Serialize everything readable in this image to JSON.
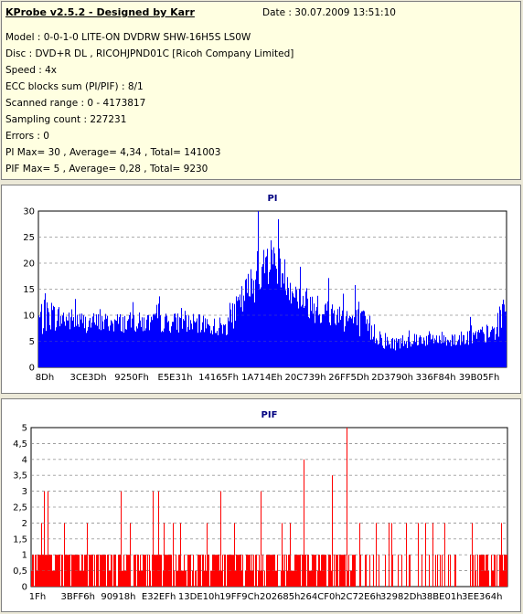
{
  "header": {
    "title": "KProbe v2.5.2 - Designed by Karr",
    "date": "Date : 30.07.2009 13:51:10"
  },
  "info_lines": [
    "Model : 0-0-1-0 LITE-ON DVDRW SHW-16H5S  LS0W",
    "Disc : DVD+R DL , RICOHJPND01C [Ricoh Company Limited]",
    "Speed : 4x",
    "ECC blocks sum (PI/PIF) : 8/1",
    "Scanned range : 0 - 4173817",
    "Sampling count : 227231",
    "Errors : 0",
    "PI Max= 30 , Average= 4,34 , Total= 141003",
    "PIF Max= 5 , Average= 0,28 , Total= 9230"
  ],
  "colors": {
    "pi": "#0000ff",
    "pif": "#ff0000",
    "title": "#000080"
  },
  "chart_data": [
    {
      "type": "bar",
      "title": "PI",
      "ylim": [
        0,
        30
      ],
      "yticks": [
        0,
        5,
        10,
        15,
        20,
        25,
        30
      ],
      "xticklabels": [
        "8Dh",
        "3CE3Dh",
        "9250Fh",
        "E5E31h",
        "14165Fh",
        "1A714Eh",
        "20C739h",
        "26FF5Dh",
        "2D3790h",
        "336F84h",
        "39B05Fh"
      ],
      "grid": true,
      "profile": {
        "x": [
          0,
          0.02,
          0.1,
          0.2,
          0.3,
          0.4,
          0.45,
          0.5,
          0.55,
          0.6,
          0.65,
          0.7,
          0.75,
          0.8,
          0.9,
          0.97,
          1.0
        ],
        "base": [
          8,
          9,
          8,
          8,
          8,
          7,
          14,
          20,
          13,
          10,
          9,
          7,
          4,
          5,
          5,
          6,
          10
        ],
        "amp": [
          8,
          6,
          4,
          4,
          4,
          4,
          8,
          9,
          6,
          6,
          6,
          6,
          3,
          3,
          3,
          4,
          8
        ]
      }
    },
    {
      "type": "bar",
      "title": "PIF",
      "ylim": [
        0,
        5
      ],
      "yticks": [
        0,
        0.5,
        1,
        1.5,
        2,
        2.5,
        3,
        3.5,
        4,
        4.5,
        5
      ],
      "yticklabels": [
        "0",
        "0,5",
        "1",
        "1,5",
        "2",
        "2,5",
        "3",
        "3,5",
        "4",
        "4,5",
        "5"
      ],
      "xticklabels": [
        "1Fh",
        "3BFF6h",
        "90918h",
        "E32EFh",
        "13DE10h",
        "19FF9Ch",
        "202685h",
        "264CF0h",
        "2C72E6h",
        "32982Dh",
        "38BE01h",
        "3EE364h"
      ],
      "grid": true,
      "max": 5
    }
  ]
}
